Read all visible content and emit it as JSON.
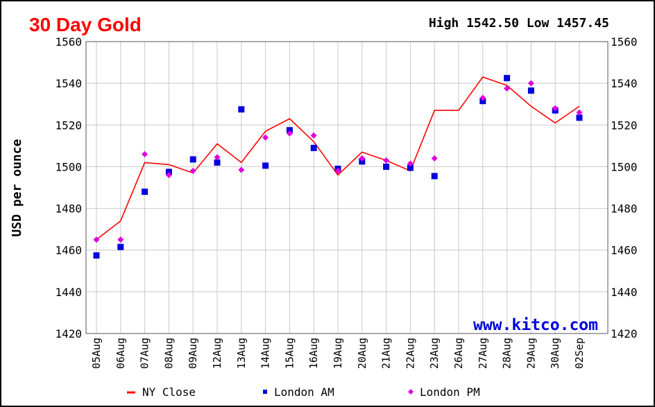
{
  "chart_data": {
    "type": "line",
    "title": "30 Day Gold",
    "high_label": "High 1542.50 Low 1457.45",
    "ylabel": "USD per ounce",
    "watermark": "www.kitco.com",
    "ylim": [
      1420,
      1560
    ],
    "yticks": [
      1420,
      1440,
      1460,
      1480,
      1500,
      1520,
      1540,
      1560
    ],
    "grid": true,
    "legend_position": "bottom",
    "categories": [
      "05Aug",
      "06Aug",
      "07Aug",
      "08Aug",
      "09Aug",
      "12Aug",
      "13Aug",
      "14Aug",
      "15Aug",
      "16Aug",
      "19Aug",
      "20Aug",
      "21Aug",
      "22Aug",
      "23Aug",
      "26Aug",
      "27Aug",
      "28Aug",
      "29Aug",
      "30Aug",
      "02Sep"
    ],
    "series": [
      {
        "name": "NY Close",
        "kind": "line",
        "color": "#ff0000",
        "values": [
          1465,
          1474,
          1502,
          1501,
          1497,
          1511,
          1502,
          1517,
          1523,
          1512,
          1496,
          1507,
          1503,
          1498,
          1527,
          1527,
          1543,
          1539,
          1529,
          1521,
          1529
        ]
      },
      {
        "name": "London AM",
        "kind": "square",
        "color": "#0000dd",
        "values": [
          1457.45,
          1461.5,
          1488,
          1497.5,
          1503.5,
          1502,
          1527.5,
          1500.5,
          1517.5,
          1509,
          1499,
          1502.5,
          1500,
          1499.5,
          1495.5,
          null,
          1531.5,
          1542.5,
          1536.5,
          1527,
          1523.5
        ]
      },
      {
        "name": "London PM",
        "kind": "diamond",
        "color": "#dd00dd",
        "values": [
          1465,
          1465,
          1506,
          1496,
          1498,
          1504.5,
          1498.5,
          1514,
          1516,
          1515,
          1498,
          1504,
          1503,
          1501.5,
          1504,
          null,
          1533,
          1537.5,
          1540,
          1528,
          1526
        ]
      }
    ]
  }
}
